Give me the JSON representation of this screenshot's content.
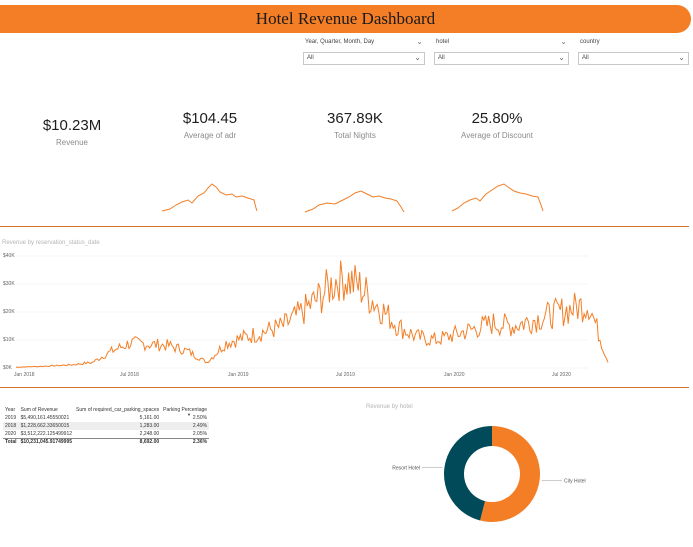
{
  "header": {
    "title": "Hotel Revenue Dashboard"
  },
  "slicers": [
    {
      "label": "Year, Quarter, Month, Day",
      "value": "All"
    },
    {
      "label": "hotel",
      "value": "All"
    },
    {
      "label": "country",
      "value": "All"
    }
  ],
  "kpis": [
    {
      "value": "$10.23M",
      "label": "Revenue"
    },
    {
      "value": "$104.45",
      "label": "Average of adr"
    },
    {
      "value": "367.89K",
      "label": "Total Nights"
    },
    {
      "value": "25.80%",
      "label": "Average of Discount"
    }
  ],
  "table": {
    "headers": [
      "Year",
      "Sum of Revenue",
      "Sum of required_car_parking_spaces",
      "Parking Percentage"
    ],
    "rows": [
      [
        "2019",
        "$5,490,161.45550021",
        "5,161.00",
        "2.50%"
      ],
      [
        "2018",
        "$1,228,662.33650015",
        "1,283.00",
        "2.49%"
      ],
      [
        "2020",
        "$3,512,222.125499912",
        "2,248.00",
        "2.05%"
      ]
    ],
    "total": [
      "Total",
      "$10,231,045.91749995",
      "8,692.00",
      "2.36%"
    ]
  },
  "colors": {
    "accent": "#f37e26",
    "teal": "#004a59",
    "divider": "#d4732c"
  },
  "chart_data": [
    {
      "type": "line",
      "title": "Revenue by reservation_status_date",
      "xlabel": "",
      "ylabel": "",
      "x_ticks": [
        "Jan 2018",
        "Jul 2018",
        "Jan 2019",
        "Jul 2019",
        "Jan 2020",
        "Jul 2020"
      ],
      "y_ticks": [
        "$0K",
        "$10K",
        "$20K",
        "$30K",
        "$40K"
      ],
      "ylim": [
        0,
        40000
      ],
      "xlim": [
        0,
        31
      ],
      "series": [
        {
          "name": "Revenue",
          "x": [
            0,
            1,
            2,
            3,
            4,
            5,
            6,
            7,
            8,
            9,
            10,
            11,
            12,
            13,
            14,
            15,
            16,
            17,
            18,
            19,
            20,
            21,
            22,
            23,
            24,
            25,
            26,
            27,
            28,
            29,
            30,
            31
          ],
          "values": [
            300,
            500,
            800,
            1200,
            2000,
            6000,
            9000,
            8500,
            8000,
            6000,
            2000,
            9000,
            11000,
            13000,
            15000,
            20000,
            26000,
            33000,
            29000,
            22000,
            15000,
            11000,
            10000,
            12000,
            14000,
            16000,
            15000,
            17000,
            19000,
            21000,
            23000,
            2000
          ]
        }
      ]
    },
    {
      "type": "pie",
      "title": "Revenue by hotel",
      "donut": true,
      "labels": [
        "City Hotel",
        "Resort Hotel"
      ],
      "values": [
        54,
        46
      ],
      "colors": [
        "#f37e26",
        "#004a59"
      ]
    }
  ]
}
